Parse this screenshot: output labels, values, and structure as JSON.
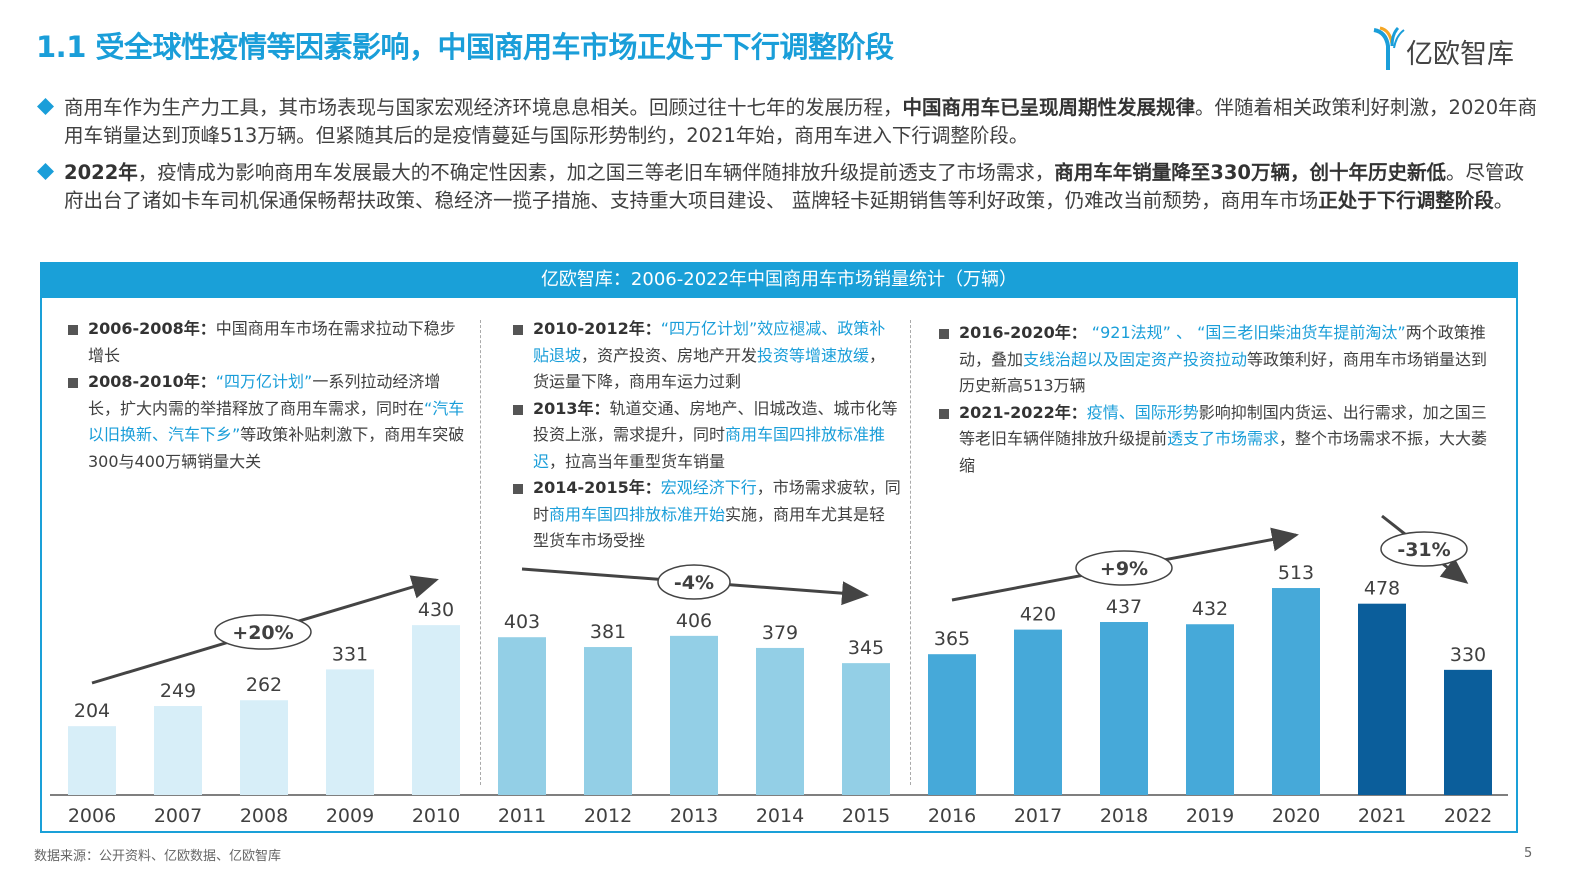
{
  "header": {
    "title": "1.1 受全球性疫情等因素影响，中国商用车市场正处于下行调整阶段",
    "logo_text": "亿欧智库"
  },
  "paragraphs": [
    [
      {
        "t": "商用车作为生产力工具，其市场表现与国家宏观经济环境息息相关。回顾过往十七年的发展历程，"
      },
      {
        "t": "中国商用车已呈现周期性发展规律",
        "s": "b"
      },
      {
        "t": "。伴随着相关政策利好刺激，2020年商用车销量达到顶峰513万辆。但紧随其后的是疫情蔓延与国际形势制约，2021年始，商用车进入下行调整阶段。"
      }
    ],
    [
      {
        "t": "2022年",
        "s": "b"
      },
      {
        "t": "，疫情成为影响商用车发展最大的不确定性因素，加之国三等老旧车辆伴随排放升级提前透支了市场需求，"
      },
      {
        "t": "商用车年销量降至330万辆，创十年历史新低",
        "s": "b"
      },
      {
        "t": "。尽管政府出台了诸如卡车司机保通保畅帮扶政策、稳经济一揽子措施、支持重大项目建设、 蓝牌轻卡延期销售等利好政策，仍难改当前颓势，商用车市场"
      },
      {
        "t": "正处于下行调整阶段",
        "s": "b"
      },
      {
        "t": "。"
      }
    ]
  ],
  "chart_title": "亿欧智库：2006-2022年中国商用车市场销量统计（万辆）",
  "notes": [
    [
      [
        {
          "t": "2006-2008年：",
          "s": "b"
        },
        {
          "t": "中国商用车市场在需求拉动下稳步增长"
        }
      ],
      [
        {
          "t": "2008-2010年：",
          "s": "b"
        },
        {
          "t": "“四万亿计划”",
          "s": "hl"
        },
        {
          "t": "一系列拉动经济增长，扩大内需的举措释放了商用车需求，同时在"
        },
        {
          "t": "“汽车以旧换新、汽车下乡”",
          "s": "hl"
        },
        {
          "t": "等政策补贴刺激下，商用车突破300与400万辆销量大关"
        }
      ]
    ],
    [
      [
        {
          "t": "2010-2012年：",
          "s": "b"
        },
        {
          "t": "“四万亿计划”效应褪减、政策补贴退坡",
          "s": "hl"
        },
        {
          "t": "，资产投资、房地产开发"
        },
        {
          "t": "投资等增速放缓",
          "s": "hl"
        },
        {
          "t": "，货运量下降，商用车运力过剩"
        }
      ],
      [
        {
          "t": "2013年：",
          "s": "b"
        },
        {
          "t": "轨道交通、房地产、旧城改造、城市化等投资上涨，需求提升，同时"
        },
        {
          "t": "商用车国四排放标准推迟",
          "s": "hl"
        },
        {
          "t": "，拉高当年重型货车销量"
        }
      ],
      [
        {
          "t": "2014-2015年：",
          "s": "b"
        },
        {
          "t": "宏观经济下行",
          "s": "hl"
        },
        {
          "t": "，市场需求疲软，同时"
        },
        {
          "t": "商用车国四排放标准开始",
          "s": "hl"
        },
        {
          "t": "实施，商用车尤其是轻型货车市场受挫"
        }
      ]
    ],
    [
      [
        {
          "t": "2016-2020年：",
          "s": "b"
        },
        {
          "t": " “921法规” 、 “国三老旧柴油货车提前淘汰”",
          "s": "hl"
        },
        {
          "t": "两个政策推动，叠加"
        },
        {
          "t": "支线治超以及固定资产投资拉动",
          "s": "hl"
        },
        {
          "t": "等政策利好，商用车市场销量达到历史新高513万辆"
        }
      ],
      [
        {
          "t": "2021-2022年：",
          "s": "b"
        },
        {
          "t": "疫情、国际形势",
          "s": "hl"
        },
        {
          "t": "影响抑制国内货运、出行需求，加之国三等老旧车辆伴随排放升级提前"
        },
        {
          "t": "透支了市场需求",
          "s": "hl"
        },
        {
          "t": "，整个市场需求不振，大大萎缩"
        }
      ]
    ]
  ],
  "chart_data": {
    "type": "bar",
    "title": "亿欧智库：2006-2022年中国商用车市场销量统计（万辆）",
    "categories": [
      "2006",
      "2007",
      "2008",
      "2009",
      "2010",
      "2011",
      "2012",
      "2013",
      "2014",
      "2015",
      "2016",
      "2017",
      "2018",
      "2019",
      "2020",
      "2021",
      "2022"
    ],
    "values": [
      204,
      249,
      262,
      331,
      430,
      403,
      381,
      406,
      379,
      345,
      365,
      420,
      437,
      432,
      513,
      478,
      330
    ],
    "bar_colors": [
      "#d7eef8",
      "#d7eef8",
      "#d7eef8",
      "#d7eef8",
      "#d7eef8",
      "#93cfe6",
      "#93cfe6",
      "#93cfe6",
      "#93cfe6",
      "#93cfe6",
      "#46a9d9",
      "#46a9d9",
      "#46a9d9",
      "#46a9d9",
      "#46a9d9",
      "#0b5e9b",
      "#0b5e9b"
    ],
    "trend_annotations": [
      {
        "label": "+20%",
        "from": "2006",
        "to": "2010"
      },
      {
        "label": "-4%",
        "from": "2011",
        "to": "2015"
      },
      {
        "label": "+9%",
        "from": "2016",
        "to": "2020"
      },
      {
        "label": "-31%",
        "from": "2021",
        "to": "2022"
      }
    ],
    "data_labels": true,
    "grid": false,
    "y_axis_visible": false
  },
  "colors": {
    "accent": "#1a9ed9",
    "header_bar": "#1aa0d8"
  },
  "footer": {
    "source": "数据来源：公开资料、亿欧数据、亿欧智库",
    "page": "5"
  }
}
